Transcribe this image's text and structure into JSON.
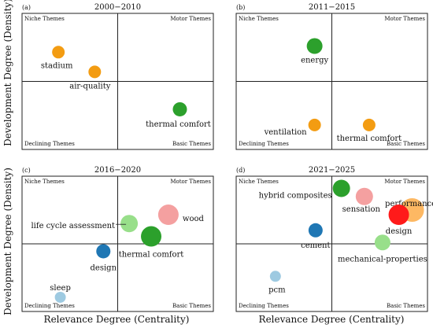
{
  "figure": {
    "y_axis_label": "Development Degree (Density)",
    "x_axis_label": "Relevance Degree (Centrality)"
  },
  "chart_data": [
    {
      "type": "scatter",
      "panel_label": "(a)",
      "title": "2000−2010",
      "quadrants": {
        "top_left": "Niche Themes",
        "top_right": "Motor Themes",
        "bottom_left": "Declining Themes",
        "bottom_right": "Basic Themes"
      },
      "points": [
        {
          "label": "stadium",
          "centrality": -0.62,
          "density": 0.43,
          "size": 8,
          "color": "#f39c12"
        },
        {
          "label": "air-quality",
          "centrality": -0.24,
          "density": 0.14,
          "size": 8,
          "color": "#f39c12"
        },
        {
          "label": "thermal comfort",
          "centrality": 0.65,
          "density": -0.41,
          "size": 9,
          "color": "#2ca02c"
        }
      ]
    },
    {
      "type": "scatter",
      "panel_label": "(b)",
      "title": "2011−2015",
      "quadrants": {
        "top_left": "Niche Themes",
        "top_right": "Motor Themes",
        "bottom_left": "Declining Themes",
        "bottom_right": "Basic Themes"
      },
      "points": [
        {
          "label": "energy",
          "centrality": -0.18,
          "density": 0.52,
          "size": 10,
          "color": "#2ca02c"
        },
        {
          "label": "ventilation",
          "centrality": -0.18,
          "density": -0.64,
          "size": 8,
          "color": "#f39c12"
        },
        {
          "label": "thermal comfort",
          "centrality": 0.39,
          "density": -0.64,
          "size": 8,
          "color": "#f39c12"
        }
      ]
    },
    {
      "type": "scatter",
      "panel_label": "(c)",
      "title": "2016−2020",
      "quadrants": {
        "top_left": "Niche Themes",
        "top_right": "Motor Themes",
        "bottom_left": "Declining Themes",
        "bottom_right": "Basic Themes"
      },
      "points": [
        {
          "label": "life cycle assessment",
          "centrality": 0.12,
          "density": 0.3,
          "size": 11,
          "color": "#98df8a"
        },
        {
          "label": "wood",
          "centrality": 0.53,
          "density": 0.43,
          "size": 13,
          "color": "#f4a0a0"
        },
        {
          "label": "thermal comfort",
          "centrality": 0.35,
          "density": 0.11,
          "size": 13,
          "color": "#2ca02c"
        },
        {
          "label": "design",
          "centrality": -0.15,
          "density": -0.11,
          "size": 9,
          "color": "#1f77b4"
        },
        {
          "label": "sleep",
          "centrality": -0.6,
          "density": -0.79,
          "size": 7,
          "color": "#9ecae1"
        }
      ]
    },
    {
      "type": "scatter",
      "panel_label": "(d)",
      "title": "2021−2025",
      "quadrants": {
        "top_left": "Niche Themes",
        "top_right": "Motor Themes",
        "bottom_left": "Declining Themes",
        "bottom_right": "Basic Themes"
      },
      "points": [
        {
          "label": "hybrid composites",
          "centrality": 0.1,
          "density": 0.82,
          "size": 11,
          "color": "#2ca02c"
        },
        {
          "label": "sensation",
          "centrality": 0.34,
          "density": 0.7,
          "size": 11,
          "color": "#f4a0a0"
        },
        {
          "label": "performance",
          "centrality": 0.84,
          "density": 0.5,
          "size": 15,
          "color": "#fdb863"
        },
        {
          "label": "design",
          "centrality": 0.7,
          "density": 0.43,
          "size": 13,
          "color": "#ff1a1a"
        },
        {
          "label": "cement",
          "centrality": -0.17,
          "density": 0.2,
          "size": 9,
          "color": "#1f77b4"
        },
        {
          "label": "mechanical-properties",
          "centrality": 0.53,
          "density": 0.02,
          "size": 10,
          "color": "#98df8a"
        },
        {
          "label": "pcm",
          "centrality": -0.59,
          "density": -0.48,
          "size": 7,
          "color": "#9ecae1"
        }
      ]
    }
  ]
}
